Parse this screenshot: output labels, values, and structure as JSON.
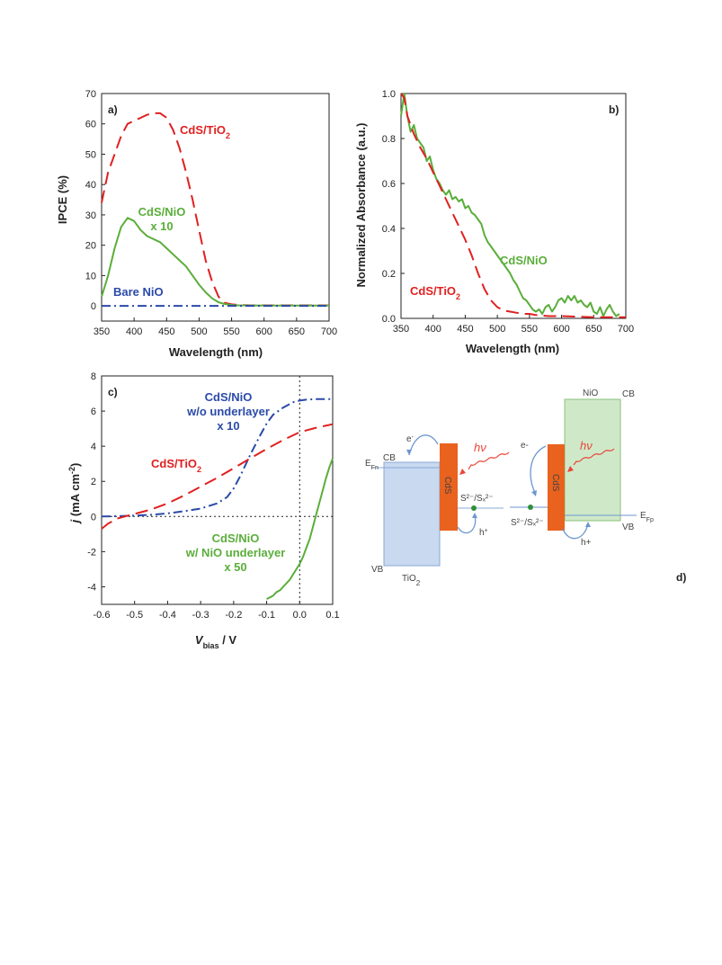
{
  "chart_data": [
    {
      "panel": "a)",
      "type": "line",
      "xlabel": "Wavelength (nm)",
      "ylabel": "IPCE (%)",
      "xlim": [
        350,
        700
      ],
      "ylim": [
        -5,
        70
      ],
      "xticks": [
        350,
        400,
        450,
        500,
        550,
        600,
        650,
        700
      ],
      "yticks": [
        0,
        10,
        20,
        30,
        40,
        50,
        60,
        70
      ],
      "series": [
        {
          "name": "CdS/TiO2",
          "name_main": "CdS/TiO",
          "name_sub": "2",
          "color": "#e02020",
          "dash": "dash",
          "x": [
            350,
            360,
            370,
            380,
            390,
            400,
            410,
            420,
            430,
            440,
            450,
            460,
            470,
            480,
            490,
            500,
            510,
            520,
            530,
            540,
            550,
            560,
            580,
            600,
            650,
            700
          ],
          "y": [
            34,
            44,
            50,
            56,
            60,
            61,
            62,
            63,
            63.5,
            63.5,
            62,
            58,
            52,
            44,
            35,
            25,
            15,
            8,
            3,
            1,
            0.5,
            0.3,
            0.2,
            0.2,
            0.2,
            0.2
          ]
        },
        {
          "name": "CdS/NiO x 10",
          "name_lines": [
            "CdS/NiO",
            "x 10"
          ],
          "color": "#5aae3a",
          "dash": "solid",
          "x": [
            350,
            360,
            370,
            380,
            390,
            400,
            410,
            420,
            430,
            440,
            450,
            460,
            470,
            480,
            490,
            500,
            510,
            520,
            530,
            540,
            550,
            560,
            600,
            650,
            700
          ],
          "y": [
            3,
            10,
            19,
            26,
            29,
            28,
            25,
            23,
            22,
            21,
            19,
            17,
            15,
            13,
            10,
            7,
            4.5,
            2.5,
            1.2,
            0.6,
            0.3,
            0.2,
            0.1,
            0.1,
            0.1
          ]
        },
        {
          "name": "Bare NiO",
          "color": "#2a4aa8",
          "dash": "dashdot",
          "x": [
            350,
            400,
            450,
            500,
            550,
            600,
            650,
            700
          ],
          "y": [
            0,
            0,
            0,
            0,
            0,
            0,
            0,
            0
          ]
        }
      ]
    },
    {
      "panel": "b)",
      "type": "line",
      "xlabel": "Wavelength (nm)",
      "ylabel": "Normalized Absorbance (a.u.)",
      "xlim": [
        350,
        700
      ],
      "ylim": [
        0,
        1.0
      ],
      "xticks": [
        350,
        400,
        450,
        500,
        550,
        600,
        650,
        700
      ],
      "yticks": [
        "0.0",
        "0.2",
        "0.4",
        "0.6",
        "0.8",
        "1.0"
      ],
      "series": [
        {
          "name": "CdS/NiO",
          "color": "#5aae3a",
          "dash": "solid",
          "x": [
            350,
            355,
            360,
            365,
            370,
            375,
            380,
            385,
            390,
            395,
            400,
            405,
            410,
            415,
            420,
            425,
            430,
            435,
            440,
            445,
            450,
            455,
            460,
            465,
            470,
            475,
            480,
            485,
            490,
            495,
            500,
            505,
            510,
            515,
            520,
            525,
            530,
            535,
            540,
            545,
            550,
            555,
            560,
            565,
            570,
            575,
            580,
            585,
            590,
            595,
            600,
            605,
            610,
            615,
            620,
            625,
            630,
            635,
            640,
            645,
            650,
            655,
            660,
            665,
            670,
            675,
            680,
            685,
            690
          ],
          "y": [
            0.9,
            1.0,
            0.9,
            0.83,
            0.86,
            0.8,
            0.78,
            0.76,
            0.7,
            0.72,
            0.66,
            0.62,
            0.6,
            0.57,
            0.55,
            0.57,
            0.53,
            0.54,
            0.52,
            0.53,
            0.49,
            0.5,
            0.47,
            0.46,
            0.44,
            0.42,
            0.37,
            0.34,
            0.32,
            0.3,
            0.28,
            0.26,
            0.24,
            0.22,
            0.2,
            0.17,
            0.15,
            0.12,
            0.09,
            0.08,
            0.06,
            0.04,
            0.03,
            0.04,
            0.02,
            0.05,
            0.06,
            0.03,
            0.05,
            0.08,
            0.09,
            0.07,
            0.1,
            0.08,
            0.1,
            0.07,
            0.08,
            0.06,
            0.05,
            0.07,
            0.03,
            0.02,
            0.05,
            0.01,
            0.04,
            0.06,
            0.03,
            0.01,
            0.02
          ]
        },
        {
          "name": "CdS/TiO2",
          "name_main": "CdS/TiO",
          "name_sub": "2",
          "color": "#e02020",
          "dash": "dash",
          "x": [
            350,
            355,
            360,
            370,
            380,
            390,
            400,
            410,
            420,
            430,
            440,
            450,
            460,
            470,
            480,
            490,
            500,
            510,
            520,
            530,
            540,
            550,
            560,
            580,
            600,
            650,
            700
          ],
          "y": [
            1.0,
            0.98,
            0.9,
            0.82,
            0.76,
            0.71,
            0.65,
            0.59,
            0.53,
            0.47,
            0.41,
            0.35,
            0.28,
            0.2,
            0.13,
            0.08,
            0.05,
            0.035,
            0.03,
            0.025,
            0.02,
            0.02,
            0.015,
            0.01,
            0.01,
            0.005,
            0.005
          ]
        }
      ]
    },
    {
      "panel": "c)",
      "type": "line",
      "xlabel_main": "V",
      "xlabel_sub": "bias",
      "xlabel_unit": " / V",
      "ylabel_main": "j",
      "ylabel_unit": " (mA cm",
      "ylabel_sup": "-2",
      "ylabel_end": ")",
      "xlim": [
        -0.6,
        0.1
      ],
      "ylim": [
        -5,
        8
      ],
      "xticks": [
        "-0.6",
        "-0.5",
        "-0.4",
        "-0.3",
        "-0.2",
        "-0.1",
        "0.0",
        "0.1"
      ],
      "yticks": [
        "-4",
        "-2",
        "0",
        "2",
        "4",
        "6",
        "8"
      ],
      "series": [
        {
          "name": "CdS/NiO w/o underlayer x 10",
          "name_lines": [
            "CdS/NiO",
            "w/o underlayer",
            "x 10"
          ],
          "color": "#2a4aa8",
          "dash": "dashdot",
          "x": [
            -0.6,
            -0.55,
            -0.5,
            -0.45,
            -0.4,
            -0.35,
            -0.3,
            -0.25,
            -0.22,
            -0.2,
            -0.18,
            -0.15,
            -0.12,
            -0.1,
            -0.08,
            -0.05,
            -0.02,
            0.0,
            0.02,
            0.05,
            0.1
          ],
          "y": [
            0,
            0.02,
            0.05,
            0.1,
            0.18,
            0.3,
            0.45,
            0.75,
            1.1,
            1.6,
            2.3,
            3.5,
            4.6,
            5.3,
            5.8,
            6.2,
            6.5,
            6.6,
            6.65,
            6.68,
            6.68
          ]
        },
        {
          "name": "CdS/TiO2",
          "name_main": "CdS/TiO",
          "name_sub": "2",
          "color": "#e02020",
          "dash": "dash",
          "x": [
            -0.6,
            -0.58,
            -0.55,
            -0.52,
            -0.5,
            -0.45,
            -0.4,
            -0.35,
            -0.3,
            -0.25,
            -0.2,
            -0.15,
            -0.1,
            -0.05,
            0.0,
            0.05,
            0.1
          ],
          "y": [
            -0.7,
            -0.4,
            -0.1,
            0.05,
            0.15,
            0.4,
            0.75,
            1.2,
            1.7,
            2.2,
            2.75,
            3.3,
            3.85,
            4.35,
            4.8,
            5.05,
            5.25
          ]
        },
        {
          "name": "CdS/NiO w/ NiO underlayer x 50",
          "name_lines": [
            "CdS/NiO",
            "w/ NiO underlayer",
            "x 50"
          ],
          "color": "#5aae3a",
          "dash": "solid",
          "x": [
            -0.1,
            -0.09,
            -0.08,
            -0.07,
            -0.06,
            -0.05,
            -0.04,
            -0.03,
            -0.02,
            -0.01,
            0.0,
            0.01,
            0.02,
            0.03,
            0.04,
            0.05,
            0.06,
            0.07,
            0.08,
            0.09,
            0.1
          ],
          "y": [
            -4.7,
            -4.6,
            -4.5,
            -4.3,
            -4.2,
            -4.0,
            -3.8,
            -3.6,
            -3.3,
            -3.0,
            -2.7,
            -2.3,
            -1.8,
            -1.3,
            -0.6,
            0.1,
            0.8,
            1.5,
            2.2,
            2.8,
            3.3
          ]
        }
      ]
    },
    {
      "panel": "d)",
      "type": "diagram",
      "tio2": {
        "label_main": "TiO",
        "label_sub": "2",
        "cb": "CB",
        "vb": "VB",
        "efn_main": "E",
        "efn_sub": "Fn",
        "electron": "e",
        "electron_sup": "-",
        "hole": "h",
        "hole_sup": "+",
        "cds": "CdS",
        "hv": "hν",
        "redox": "S²⁻/Sₓ²⁻"
      },
      "nio": {
        "label": "NiO",
        "cb": "CB",
        "vb": "VB",
        "efp_main": "E",
        "efp_sub": "Fp",
        "electron": "e-",
        "hole": "h+",
        "cds": "CdS",
        "hv": "hν",
        "redox": "S²⁻/Sₓ²⁻"
      },
      "colors": {
        "tio2_fill": "#c8d9f0",
        "tio2_stroke": "#8aa8d6",
        "nio_fill": "#cfe9c8",
        "nio_stroke": "#8cc07e",
        "cds": "#e9621e",
        "arrow": "#6d96cf",
        "photon": "#e8463a",
        "dot": "#2f8f3a"
      }
    }
  ]
}
